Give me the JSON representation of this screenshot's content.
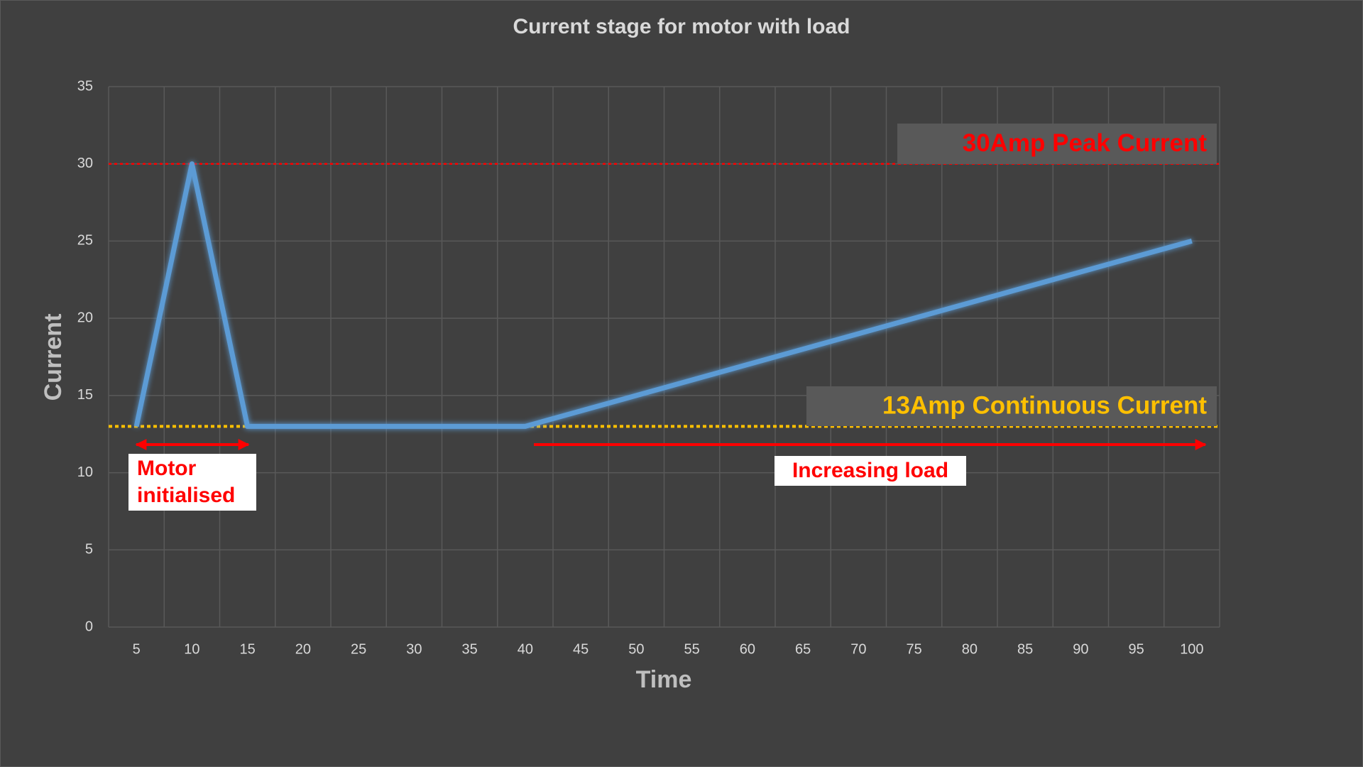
{
  "chart_data": {
    "type": "line",
    "title": "Current stage for motor with load",
    "x_label": "Time",
    "y_label": "Current",
    "categories": [
      "5",
      "10",
      "15",
      "20",
      "25",
      "30",
      "35",
      "40",
      "45",
      "50",
      "55",
      "60",
      "65",
      "70",
      "75",
      "80",
      "85",
      "90",
      "95",
      "100"
    ],
    "values": [
      13,
      30,
      13,
      13,
      13,
      13,
      13,
      13,
      14,
      15,
      16,
      17,
      18,
      19,
      20,
      21,
      22,
      23,
      24,
      25
    ],
    "color": "#5b9bd5",
    "ylim": [
      0,
      35
    ],
    "yticks": [
      0,
      5,
      10,
      15,
      20,
      25,
      30,
      35
    ],
    "grid": true,
    "reference_lines": [
      {
        "value": 30,
        "label": "30Amp Peak Current",
        "color": "#ff0000"
      },
      {
        "value": 13,
        "label": "13Amp Continuous Current",
        "color": "#ffc000"
      }
    ],
    "annotations": [
      {
        "text": "Motor initialised",
        "color": "#ff0000"
      },
      {
        "text": "Increasing load",
        "color": "#ff0000"
      }
    ]
  }
}
